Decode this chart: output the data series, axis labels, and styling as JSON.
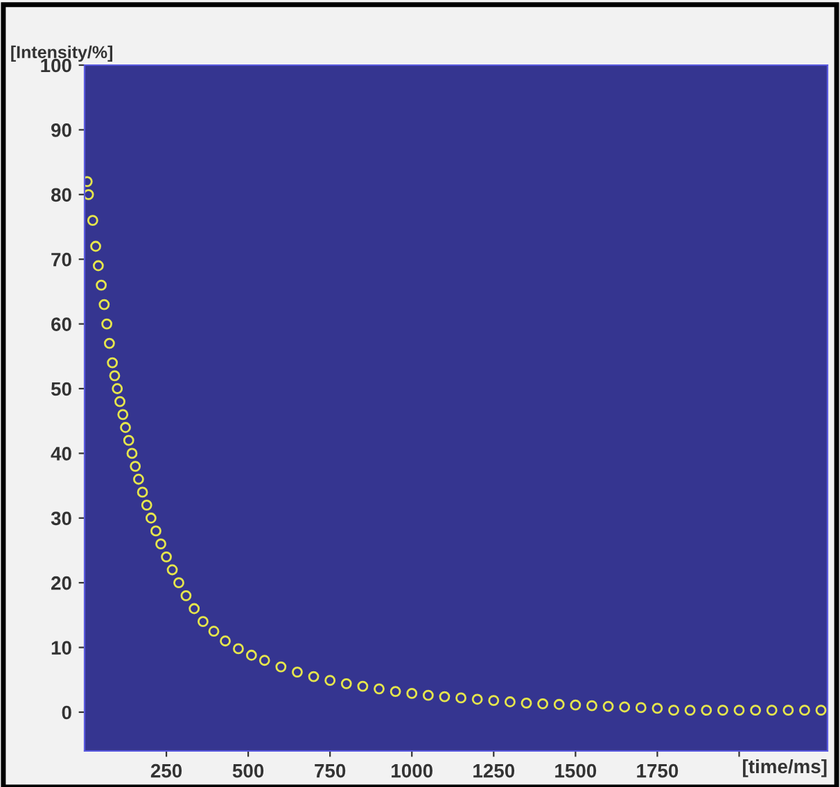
{
  "chart_data": {
    "type": "scatter",
    "xlabel": "[time/ms]",
    "ylabel": "[Intensity/%]",
    "x": [
      8,
      12,
      25,
      34,
      42,
      51,
      60,
      68,
      76,
      85,
      92,
      100,
      108,
      117,
      125,
      135,
      145,
      155,
      165,
      177,
      190,
      203,
      218,
      233,
      250,
      268,
      288,
      310,
      335,
      362,
      395,
      430,
      470,
      510,
      550,
      600,
      650,
      700,
      750,
      800,
      850,
      900,
      950,
      1000,
      1050,
      1100,
      1150,
      1200,
      1250,
      1300,
      1350,
      1400,
      1450,
      1500,
      1550,
      1600,
      1650,
      1700,
      1750,
      1800,
      1850,
      1900,
      1950,
      2000,
      2050,
      2100,
      2150,
      2200,
      2250
    ],
    "series": [
      {
        "color": "#e6e64c",
        "values": [
          82,
          80,
          76,
          72,
          69,
          66,
          63,
          60,
          57,
          54,
          52,
          50,
          48,
          46,
          44,
          42,
          40,
          38,
          36,
          34,
          32,
          30,
          28,
          26,
          24,
          22,
          20,
          18,
          16,
          14,
          12.5,
          11,
          9.8,
          8.8,
          8,
          7,
          6.2,
          5.5,
          4.9,
          4.4,
          4,
          3.6,
          3.2,
          2.9,
          2.6,
          2.4,
          2.2,
          2,
          1.8,
          1.6,
          1.4,
          1.3,
          1.2,
          1.1,
          1.0,
          0.9,
          0.8,
          0.7,
          0.6,
          0.3,
          0.3,
          0.3,
          0.3,
          0.3,
          0.3,
          0.3,
          0.3,
          0.3,
          0.3
        ]
      }
    ],
    "xlim": [
      0,
      2270
    ],
    "ylim": [
      -6,
      100
    ],
    "xticks": [
      250,
      500,
      750,
      1000,
      1250,
      1500,
      1750,
      {
        "value": 2000,
        "label": null
      }
    ],
    "yticks": [
      0,
      10,
      20,
      30,
      40,
      50,
      60,
      70,
      80,
      90,
      100
    ],
    "marker": "circle",
    "grid": false,
    "legend": false
  }
}
